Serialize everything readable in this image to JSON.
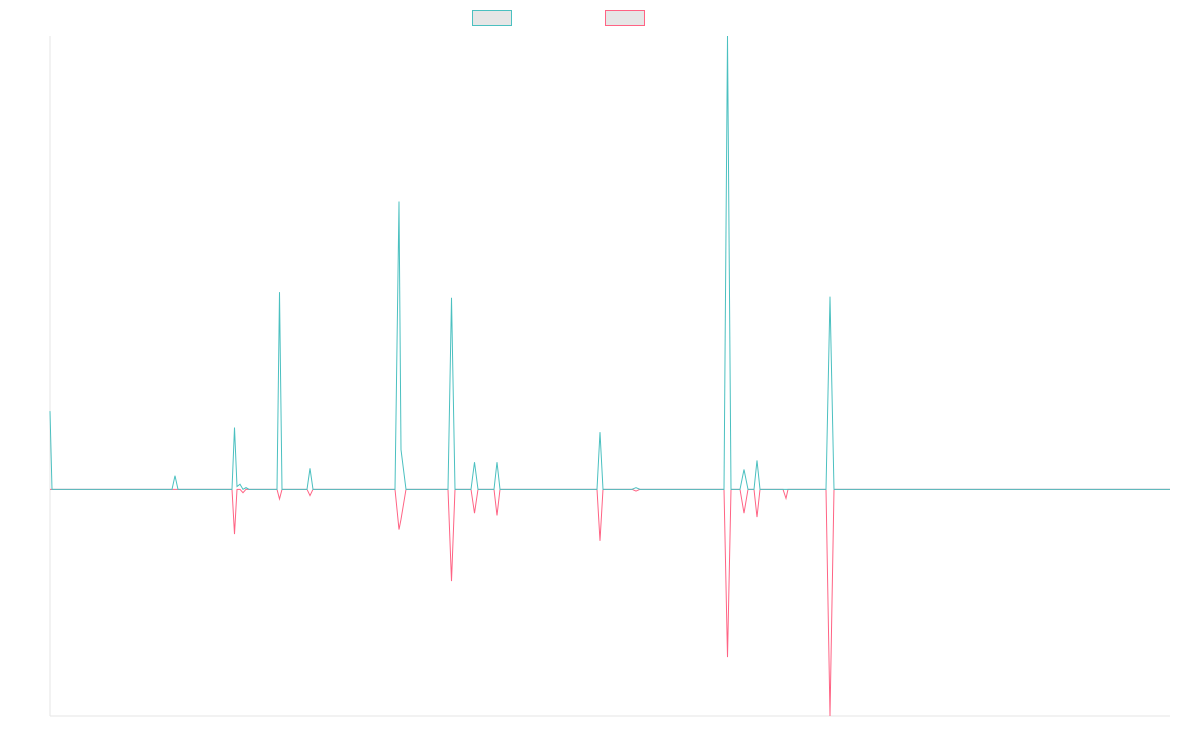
{
  "colors": {
    "series_a": "#4bc0c0",
    "series_b": "#ff6384",
    "legend_fill": "#e6e6e6",
    "axis": "#e6e6e6"
  },
  "chart_data": {
    "type": "line",
    "title": "",
    "xlabel": "",
    "ylabel": "",
    "grid": false,
    "legend": "top-center",
    "x": [
      0,
      1,
      2,
      3,
      4,
      5,
      6,
      7,
      8,
      9,
      10,
      11,
      12,
      13,
      14,
      15,
      16,
      17,
      18,
      19,
      20,
      21,
      22,
      23,
      24,
      25,
      26,
      27,
      28,
      29,
      30,
      31,
      32,
      33,
      34,
      35,
      36,
      37,
      38,
      39,
      40,
      41,
      42,
      43,
      44,
      45,
      46,
      47,
      48,
      49,
      50,
      51,
      52,
      53,
      54,
      55,
      56,
      57,
      58,
      59,
      60,
      61,
      62,
      63,
      64,
      65,
      66,
      67,
      68,
      69,
      70,
      71,
      72,
      73,
      74,
      75,
      76,
      77,
      78,
      79,
      80,
      81,
      82,
      83,
      84,
      85,
      86,
      87,
      88,
      89,
      90,
      91,
      92,
      93,
      94,
      95,
      96,
      97,
      98,
      99,
      100,
      101,
      102,
      103,
      104,
      105,
      106,
      107,
      108,
      109,
      110,
      111,
      112,
      113,
      114,
      115,
      116,
      117,
      118,
      119,
      120,
      121,
      122,
      123,
      124,
      125,
      126,
      127,
      128,
      129,
      130,
      131,
      132,
      133,
      134,
      135,
      136,
      137,
      138,
      139,
      140,
      141,
      142,
      143,
      144,
      145,
      146,
      147,
      148,
      149,
      150,
      151,
      152,
      153,
      154,
      155,
      156,
      157,
      158,
      159,
      160,
      161,
      162,
      163,
      164,
      165,
      166,
      167,
      168,
      169,
      170,
      171,
      172,
      173,
      174,
      175,
      176,
      177,
      178,
      179,
      180,
      181,
      182,
      183,
      184,
      185,
      186,
      187,
      188,
      189,
      190,
      191,
      192,
      193,
      194,
      195,
      196,
      197,
      198,
      199,
      200,
      201,
      202,
      203,
      204,
      205,
      206,
      207,
      208,
      209,
      210,
      211,
      212,
      213,
      214,
      215,
      216,
      217,
      218,
      219,
      220,
      221,
      222,
      223,
      224,
      225,
      226,
      227,
      228,
      229,
      230,
      231,
      232,
      233,
      234,
      235,
      236,
      237,
      238,
      239,
      240,
      241,
      242,
      243,
      244,
      245,
      246,
      247,
      248,
      249,
      250,
      251,
      252,
      253,
      254,
      255,
      256,
      257,
      258,
      259,
      260,
      261,
      262,
      263,
      264,
      265,
      266,
      267,
      268,
      269,
      270,
      271,
      272,
      273,
      274,
      275,
      276,
      277,
      278,
      279,
      280,
      281,
      282,
      283,
      284,
      285,
      286,
      287,
      288,
      289,
      290,
      291,
      292,
      293,
      294,
      295,
      296,
      297,
      298,
      299,
      300,
      301,
      302,
      303,
      304,
      305,
      306,
      307,
      308,
      309,
      310,
      311,
      312,
      313,
      314,
      315,
      316,
      317,
      318,
      319,
      320,
      321,
      322,
      323,
      324,
      325,
      326,
      327,
      328,
      329,
      330,
      331,
      332,
      333,
      334,
      335,
      336,
      337,
      338,
      339,
      340,
      341,
      342,
      343,
      344,
      345,
      346,
      347,
      348,
      349,
      350,
      351,
      352,
      353,
      354,
      355,
      356,
      357,
      358,
      359,
      360,
      361,
      362,
      363,
      364,
      365,
      366,
      367,
      368,
      369,
      370,
      371,
      372,
      373,
      374,
      375,
      376,
      377,
      378,
      379,
      380,
      381,
      382,
      383,
      384,
      385,
      386,
      387,
      388,
      389,
      390,
      391,
      392,
      393,
      394,
      395,
      396,
      397,
      398,
      399,
      400,
      401,
      402,
      403,
      404,
      405,
      406,
      407,
      408,
      409,
      410,
      411,
      412,
      413,
      414,
      415,
      416,
      417,
      418,
      419,
      420,
      421,
      422,
      423,
      424,
      425,
      426,
      427,
      428,
      429,
      430,
      431,
      432,
      433,
      434,
      435,
      436,
      437,
      438,
      439,
      440,
      441,
      442,
      443,
      444,
      445,
      446,
      447,
      448,
      449,
      450,
      451,
      452,
      453,
      454,
      455,
      456,
      457,
      458,
      459,
      460,
      461,
      462,
      463,
      464,
      465,
      466,
      467,
      468,
      469,
      470,
      471,
      472,
      473,
      474,
      475,
      476,
      477,
      478,
      479,
      480,
      481,
      482,
      483,
      484,
      485,
      486,
      487,
      488,
      489,
      490,
      491,
      492,
      493,
      494,
      495,
      496,
      497,
      498,
      499,
      500,
      501,
      502,
      503,
      504,
      505,
      506,
      507,
      508,
      509,
      510,
      511,
      512,
      513,
      514,
      515,
      516,
      517,
      518,
      519,
      520,
      521,
      522,
      523,
      524,
      525,
      526,
      527,
      528,
      529,
      530,
      531,
      532,
      533,
      534,
      535,
      536,
      537,
      538,
      539,
      540,
      541,
      542,
      543,
      544,
      545,
      546,
      547,
      548,
      549,
      550,
      551,
      552,
      553,
      554,
      555,
      556,
      557,
      558,
      559,
      560,
      561,
      562,
      563,
      564,
      565,
      566,
      567,
      568,
      569,
      570,
      571,
      572,
      573,
      574,
      575,
      576,
      577,
      578,
      579,
      580,
      581,
      582,
      583,
      584,
      585,
      586,
      587,
      588,
      589,
      590,
      591,
      592,
      593,
      594,
      595,
      596,
      597,
      598,
      599,
      600,
      601,
      602,
      603,
      604,
      605,
      606,
      607,
      608,
      609,
      610,
      611,
      612,
      613,
      614,
      615,
      616,
      617,
      618,
      619,
      620,
      621,
      622,
      623,
      624,
      625,
      626,
      627,
      628,
      629,
      630,
      631,
      632,
      633,
      634,
      635,
      636,
      637,
      638,
      639,
      640,
      641,
      642,
      643,
      644,
      645,
      646,
      647,
      648,
      649,
      650,
      651,
      652,
      653,
      654,
      655,
      656,
      657,
      658,
      659,
      660,
      661,
      662,
      663,
      664,
      665,
      666,
      667,
      668,
      669,
      670,
      671,
      672,
      673,
      674,
      675,
      676,
      677,
      678,
      679,
      680,
      681,
      682,
      683,
      684,
      685,
      686,
      687,
      688,
      689,
      690,
      691,
      692,
      693,
      694,
      695,
      696,
      697,
      698,
      699,
      700,
      701,
      702,
      703,
      704,
      705,
      706,
      707,
      708,
      709,
      710,
      711,
      712,
      713,
      714,
      715,
      716,
      717,
      718,
      719,
      720,
      721,
      722,
      723,
      724,
      725,
      726,
      727,
      728,
      729,
      730,
      731,
      732,
      733,
      734,
      735,
      736,
      737,
      738,
      739,
      740,
      741,
      742,
      743,
      744,
      745,
      746,
      747,
      748,
      749,
      750,
      751,
      752,
      753,
      754,
      755,
      756,
      757,
      758,
      759,
      760,
      761,
      762,
      763,
      764,
      765,
      766,
      767,
      768,
      769,
      770,
      771,
      772,
      773,
      774,
      775,
      776,
      777,
      778,
      779,
      780,
      781,
      782,
      783,
      784,
      785,
      786,
      787,
      788,
      789,
      790,
      791,
      792,
      793,
      794,
      795,
      796,
      797,
      798,
      799,
      800,
      801,
      802,
      803,
      804,
      805,
      806,
      807,
      808,
      809,
      810,
      811,
      812,
      813,
      814,
      815,
      816,
      817,
      818,
      819,
      820,
      821,
      822,
      823,
      824,
      825,
      826,
      827,
      828,
      829,
      830,
      831,
      832,
      833,
      834,
      835,
      836,
      837,
      838,
      839,
      840,
      841,
      842,
      843,
      844,
      845,
      846,
      847,
      848,
      849,
      850,
      851,
      852,
      853,
      854,
      855,
      856,
      857,
      858,
      859,
      860,
      861,
      862,
      863,
      864,
      865,
      866,
      867,
      868,
      869,
      870,
      871,
      872,
      873,
      874,
      875,
      876,
      877,
      878,
      879,
      880,
      881,
      882,
      883,
      884,
      885,
      886,
      887,
      888,
      889,
      890,
      891,
      892,
      893,
      894,
      895,
      896,
      897,
      898,
      899,
      900,
      901,
      902,
      903,
      904,
      905,
      906,
      907,
      908,
      909,
      910,
      911,
      912,
      913,
      914,
      915,
      916,
      917,
      918,
      919,
      920,
      921,
      922,
      923,
      924,
      925,
      926,
      927,
      928,
      929,
      930,
      931,
      932,
      933,
      934,
      935,
      936,
      937,
      938,
      939,
      940,
      941,
      942,
      943,
      944,
      945,
      946,
      947,
      948,
      949,
      950,
      951,
      952,
      953,
      954,
      955,
      956,
      957,
      958,
      959,
      960,
      961,
      962,
      963,
      964,
      965,
      966,
      967,
      968,
      969,
      970,
      971,
      972,
      973,
      974,
      975,
      976,
      977,
      978,
      979,
      980,
      981,
      982,
      983,
      984,
      985,
      986,
      987,
      988,
      989,
      990,
      991,
      992,
      993,
      994,
      995,
      996,
      997,
      998,
      999,
      1000,
      1001,
      1002,
      1003,
      1004,
      1005,
      1006,
      1007,
      1008,
      1009,
      1010,
      1011,
      1012,
      1013,
      1014,
      1015,
      1016,
      1017,
      1018,
      1019,
      1020,
      1021,
      1022,
      1023,
      1024,
      1025,
      1026,
      1027,
      1028,
      1029,
      1030,
      1031,
      1032,
      1033,
      1034,
      1035,
      1036,
      1037,
      1038,
      1039,
      1040,
      1041,
      1042,
      1043,
      1044,
      1045,
      1046,
      1047,
      1048,
      1049,
      1050,
      1051,
      1052,
      1053,
      1054,
      1055,
      1056,
      1057,
      1058,
      1059,
      1060,
      1061,
      1062,
      1063,
      1064,
      1065,
      1066,
      1067,
      1068,
      1069,
      1070,
      1071,
      1072,
      1073,
      1074,
      1075,
      1076,
      1077,
      1078,
      1079,
      1080,
      1081,
      1082,
      1083,
      1084,
      1085,
      1086,
      1087,
      1088,
      1089,
      1090,
      1091,
      1092,
      1093,
      1094,
      1095,
      1096,
      1097,
      1098,
      1099,
      1100,
      1101,
      1102,
      1103,
      1104,
      1105,
      1106,
      1107,
      1108,
      1109,
      1110,
      1111,
      1112,
      1113,
      1114,
      1115,
      1116,
      1117,
      1118,
      1119,
      1120
    ],
    "xlim": [
      0,
      1120
    ],
    "ylim": [
      -40,
      80
    ],
    "series": [
      {
        "color": "#4bc0c0",
        "points": [
          [
            0,
            13.8
          ],
          [
            2,
            0
          ],
          [
            122,
            0
          ],
          [
            125,
            2.4
          ],
          [
            128,
            0
          ],
          [
            182,
            0
          ],
          [
            184.5,
            10.9
          ],
          [
            187,
            0.5
          ],
          [
            190,
            0.9
          ],
          [
            193,
            0
          ],
          [
            196,
            0.3
          ],
          [
            199,
            0
          ],
          [
            227,
            0
          ],
          [
            229.5,
            34.8
          ],
          [
            232,
            0
          ],
          [
            257,
            0
          ],
          [
            260,
            3.7
          ],
          [
            263,
            0
          ],
          [
            345,
            0
          ],
          [
            349,
            50.8
          ],
          [
            351,
            7
          ],
          [
            356,
            0
          ],
          [
            398,
            0
          ],
          [
            401.5,
            33.8
          ],
          [
            405,
            0
          ],
          [
            421,
            0
          ],
          [
            424.5,
            4.8
          ],
          [
            428,
            0
          ],
          [
            444,
            0
          ],
          [
            447,
            4.8
          ],
          [
            450,
            0
          ],
          [
            547,
            0
          ],
          [
            550,
            10.1
          ],
          [
            553,
            0
          ],
          [
            582,
            0
          ],
          [
            586,
            0.3
          ],
          [
            590,
            0
          ],
          [
            674,
            0
          ],
          [
            677.5,
            80
          ],
          [
            681,
            0
          ],
          [
            690,
            0
          ],
          [
            694,
            3.5
          ],
          [
            698,
            0
          ],
          [
            704,
            0
          ],
          [
            707,
            5.1
          ],
          [
            710,
            0
          ],
          [
            733,
            0
          ],
          [
            738,
            0
          ],
          [
            776,
            0
          ],
          [
            780,
            34
          ],
          [
            784,
            0
          ],
          [
            1120,
            0
          ]
        ]
      },
      {
        "color": "#ff6384",
        "points": [
          [
            0,
            0
          ],
          [
            2,
            0
          ],
          [
            122,
            0
          ],
          [
            125,
            0
          ],
          [
            128,
            0
          ],
          [
            182,
            0
          ],
          [
            184.5,
            -7.9
          ],
          [
            187,
            0
          ],
          [
            190,
            0
          ],
          [
            193,
            -0.6
          ],
          [
            196,
            0
          ],
          [
            199,
            0
          ],
          [
            227,
            0
          ],
          [
            229.5,
            -1.7
          ],
          [
            232,
            0
          ],
          [
            257,
            0
          ],
          [
            260,
            -1.1
          ],
          [
            263,
            0
          ],
          [
            345,
            0
          ],
          [
            349,
            -7.1
          ],
          [
            351,
            -5.3
          ],
          [
            356,
            0
          ],
          [
            398,
            0
          ],
          [
            401.5,
            -16.2
          ],
          [
            405,
            0
          ],
          [
            421,
            0
          ],
          [
            424.5,
            -4.2
          ],
          [
            428,
            0
          ],
          [
            444,
            0
          ],
          [
            447,
            -4.6
          ],
          [
            450,
            0
          ],
          [
            547,
            0
          ],
          [
            550,
            -9.1
          ],
          [
            553,
            0
          ],
          [
            582,
            0
          ],
          [
            586,
            -0.3
          ],
          [
            590,
            0
          ],
          [
            674,
            0
          ],
          [
            677.5,
            -29.6
          ],
          [
            681,
            0
          ],
          [
            690,
            0
          ],
          [
            694,
            -4.2
          ],
          [
            698,
            0
          ],
          [
            704,
            0
          ],
          [
            707,
            -4.9
          ],
          [
            710,
            0
          ],
          [
            733,
            0
          ],
          [
            736,
            -1.6
          ],
          [
            738,
            0
          ],
          [
            776,
            0
          ],
          [
            780,
            -40
          ],
          [
            784,
            0
          ],
          [
            1120,
            0
          ]
        ]
      }
    ]
  }
}
